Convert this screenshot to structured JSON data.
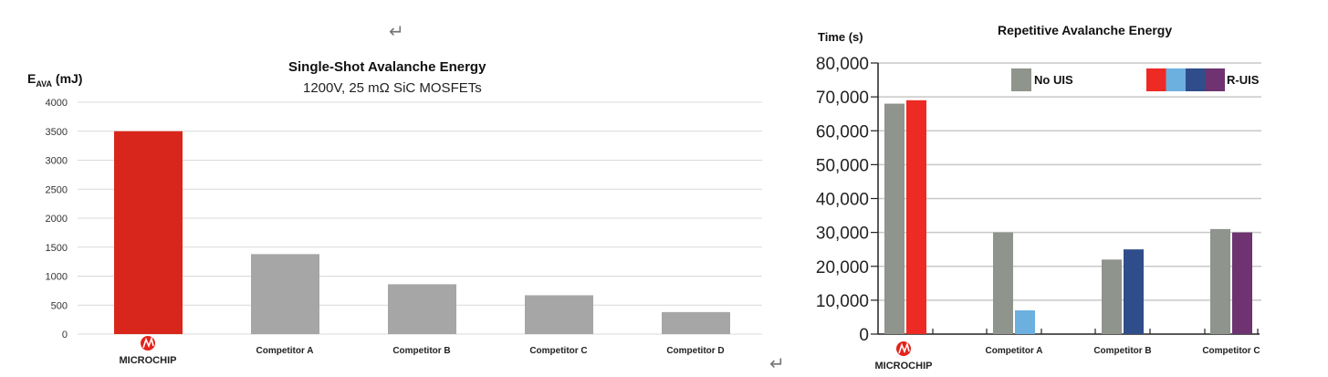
{
  "markers": {
    "return_glyph": "↵"
  },
  "chart_data": [
    {
      "type": "bar",
      "title": "Single-Shot Avalanche Energy",
      "subtitle": "1200V, 25 mΩ SiC MOSFETs",
      "ylabel_main": "E",
      "ylabel_sub": "AVA",
      "ylabel_unit": " (mJ)",
      "xlabel": "",
      "categories": [
        "MICROCHIP",
        "Competitor A",
        "Competitor B",
        "Competitor C",
        "Competitor D"
      ],
      "values": [
        3500,
        1380,
        860,
        670,
        380
      ],
      "colors": [
        "#d9261c",
        "#a6a6a6",
        "#a6a6a6",
        "#a6a6a6",
        "#a6a6a6"
      ],
      "yticks": [
        "0",
        "500",
        "1000",
        "1500",
        "2000",
        "2500",
        "3000",
        "3500",
        "4000"
      ],
      "ylim": [
        0,
        4000
      ],
      "grid": true
    },
    {
      "type": "bar",
      "title": "Repetitive Avalanche Energy",
      "ylabel": "Time (s)",
      "xlabel": "",
      "categories": [
        "MICROCHIP",
        "Competitor A",
        "Competitor B",
        "Competitor C"
      ],
      "series": [
        {
          "name": "No UIS",
          "values": [
            68000,
            30000,
            22000,
            31000
          ],
          "colors": [
            "#8f948c",
            "#8f948c",
            "#8f948c",
            "#8f948c"
          ]
        },
        {
          "name": "R-UIS",
          "values": [
            69000,
            7000,
            25000,
            30000
          ],
          "colors": [
            "#ee2a24",
            "#6cb0e0",
            "#2f4d8a",
            "#6e3370"
          ]
        }
      ],
      "yticks": [
        "0",
        "10,000",
        "20,000",
        "30,000",
        "40,000",
        "50,000",
        "60,000",
        "70,000",
        "80,000"
      ],
      "ylim": [
        0,
        80000
      ],
      "grid": true,
      "legend": "top"
    }
  ]
}
